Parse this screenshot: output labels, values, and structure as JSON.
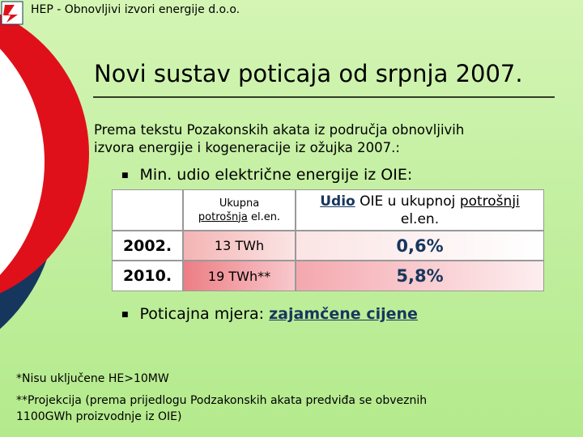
{
  "header": {
    "company": "HEP - Obnovljivi izvori energije d.o.o."
  },
  "title": "Novi sustav poticaja od srpnja 2007.",
  "intro": [
    "Prema tekstu Pozakonskih akata iz područja obnovljivih",
    "izvora energije i kogeneracije iz ožujka 2007.:"
  ],
  "bullets": [
    {
      "text": "Min. udio električne energije iz OIE:"
    },
    {
      "text": "Poticajna mjera:",
      "emphasis": "zajamčene cijene"
    }
  ],
  "table": {
    "header": [
      {
        "parts": [
          "Ukupna",
          "potrošnja",
          "el.en."
        ]
      },
      {
        "parts": [
          "Udio",
          "OIE u ukupnoj",
          "potrošnji",
          "el.en."
        ]
      }
    ],
    "rows": [
      [
        "2002.",
        "13 TWh",
        "0,6%"
      ],
      [
        "2010.",
        "19 TWh**",
        "5,8%"
      ]
    ]
  },
  "footnotes": [
    "*Nisu uključene HE>10MW",
    "**Projekcija (prema prijedlogu Podzakonskih akata predviđa se obveznih",
    "1100GWh proizvodnje iz OIE)"
  ]
}
